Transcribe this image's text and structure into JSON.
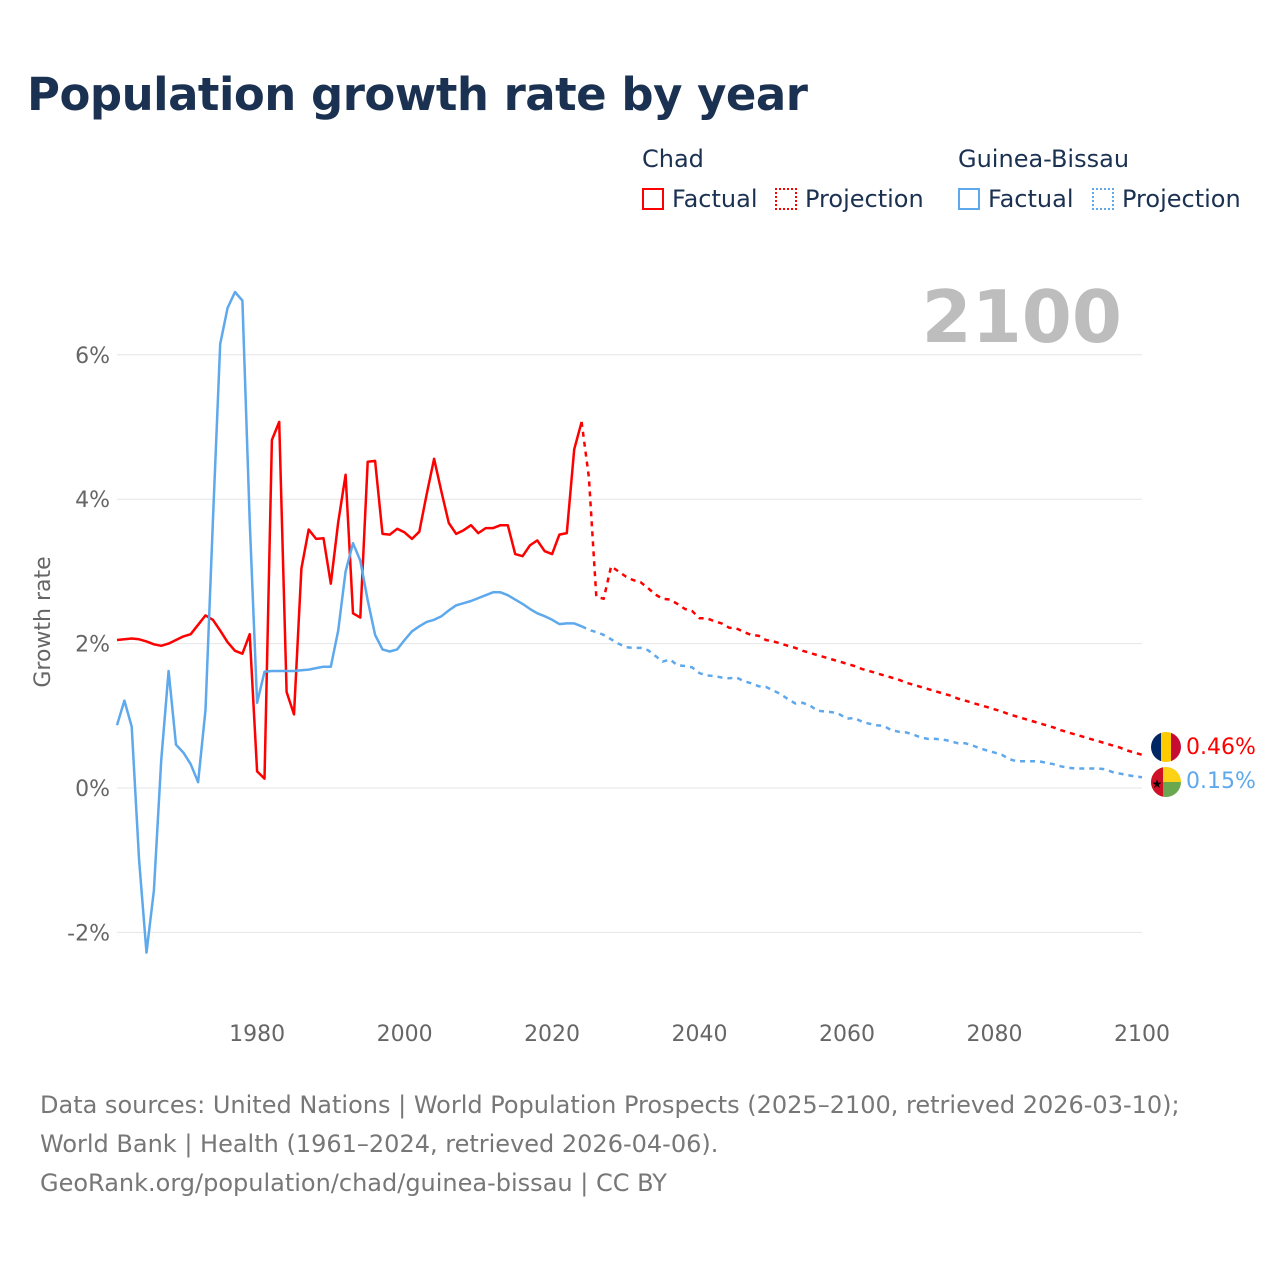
{
  "title": "Population growth rate by year",
  "legend": {
    "groups": [
      {
        "name": "Chad",
        "factual": "Factual",
        "projection": "Projection",
        "color": "#ff0000"
      },
      {
        "name": "Guinea-Bissau",
        "factual": "Factual",
        "projection": "Projection",
        "color": "#5ea8ec"
      }
    ]
  },
  "year_label": "2100",
  "end_labels": {
    "chad": "0.46%",
    "guinea_bissau": "0.15%"
  },
  "footer": {
    "sources": "Data sources: United Nations | World Population Prospects (2025–2100, retrieved 2026-03-10); World Bank | Health (1961–2024, retrieved 2026-04-06).",
    "link": "GeoRank.org/population/chad/guinea-bissau | CC BY"
  },
  "chart_data": {
    "type": "line",
    "title": "Population growth rate by year",
    "ylabel": "Growth rate",
    "xlabel": "",
    "xlim": [
      1961,
      2100
    ],
    "ylim": [
      -3,
      7
    ],
    "xticks": [
      1980,
      2000,
      2020,
      2040,
      2060,
      2080,
      2100
    ],
    "xtick_labels": [
      "1980",
      "2000",
      "2020",
      "2040",
      "2060",
      "2080",
      "2100"
    ],
    "yticks": [
      -2,
      0,
      2,
      4,
      6
    ],
    "ytick_labels": [
      "-2%",
      "0%",
      "2%",
      "4%",
      "6%"
    ],
    "grid": true,
    "series": [
      {
        "name": "Chad Factual",
        "color": "#ff0000",
        "style": "solid",
        "start": 1961,
        "values": [
          2.05,
          2.06,
          2.07,
          2.06,
          2.03,
          1.99,
          1.97,
          2.0,
          2.05,
          2.1,
          2.13,
          2.26,
          2.39,
          2.33,
          2.18,
          2.02,
          1.9,
          1.86,
          2.13,
          0.23,
          0.13,
          4.82,
          5.07,
          1.33,
          1.02,
          3.04,
          3.58,
          3.45,
          3.46,
          2.83,
          3.68,
          4.34,
          2.42,
          2.36,
          4.52,
          4.53,
          3.52,
          3.51,
          3.59,
          3.54,
          3.45,
          3.55,
          4.07,
          4.56,
          4.1,
          3.67,
          3.52,
          3.57,
          3.64,
          3.53,
          3.6,
          3.6,
          3.64,
          3.64,
          3.24,
          3.21,
          3.36,
          3.43,
          3.28,
          3.24,
          3.51,
          3.53,
          4.69,
          5.07
        ]
      },
      {
        "name": "Chad Projection",
        "color": "#ff0000",
        "style": "dotted",
        "start": 2024,
        "values": [
          5.07,
          4.3,
          2.65,
          2.62,
          3.07,
          3.0,
          2.93,
          2.88,
          2.85,
          2.77,
          2.68,
          2.62,
          2.61,
          2.55,
          2.48,
          2.45,
          2.35,
          2.35,
          2.31,
          2.28,
          2.22,
          2.21,
          2.16,
          2.12,
          2.11,
          2.05,
          2.03,
          2.0,
          1.97,
          1.94,
          1.9,
          1.87,
          1.84,
          1.81,
          1.78,
          1.75,
          1.72,
          1.69,
          1.65,
          1.62,
          1.59,
          1.56,
          1.53,
          1.5,
          1.46,
          1.43,
          1.4,
          1.37,
          1.34,
          1.31,
          1.28,
          1.24,
          1.21,
          1.18,
          1.15,
          1.12,
          1.09,
          1.06,
          1.02,
          0.99,
          0.96,
          0.93,
          0.9,
          0.87,
          0.84,
          0.8,
          0.77,
          0.74,
          0.71,
          0.68,
          0.65,
          0.62,
          0.59,
          0.56,
          0.52,
          0.49,
          0.46
        ]
      },
      {
        "name": "Guinea-Bissau Factual",
        "color": "#5ea8ec",
        "style": "solid",
        "start": 1961,
        "values": [
          0.87,
          1.21,
          0.85,
          -1.0,
          -2.28,
          -1.42,
          0.38,
          1.62,
          0.6,
          0.49,
          0.33,
          0.08,
          1.08,
          3.7,
          6.15,
          6.65,
          6.87,
          6.75,
          3.7,
          1.18,
          1.61,
          1.62,
          1.62,
          1.62,
          1.62,
          1.63,
          1.64,
          1.66,
          1.68,
          1.68,
          2.18,
          3.0,
          3.39,
          3.15,
          2.6,
          2.12,
          1.92,
          1.89,
          1.92,
          2.05,
          2.17,
          2.24,
          2.3,
          2.33,
          2.38,
          2.46,
          2.53,
          2.56,
          2.59,
          2.63,
          2.67,
          2.71,
          2.71,
          2.67,
          2.61,
          2.55,
          2.48,
          2.42,
          2.38,
          2.33,
          2.27,
          2.28,
          2.28,
          2.24
        ]
      },
      {
        "name": "Guinea-Bissau Projection",
        "color": "#5ea8ec",
        "style": "dotted",
        "start": 2024,
        "values": [
          2.24,
          2.19,
          2.16,
          2.12,
          2.06,
          2.0,
          1.95,
          1.94,
          1.94,
          1.91,
          1.83,
          1.75,
          1.78,
          1.7,
          1.69,
          1.67,
          1.59,
          1.56,
          1.55,
          1.53,
          1.52,
          1.53,
          1.48,
          1.45,
          1.41,
          1.4,
          1.35,
          1.3,
          1.23,
          1.17,
          1.18,
          1.14,
          1.07,
          1.06,
          1.05,
          1.02,
          0.96,
          0.97,
          0.92,
          0.89,
          0.87,
          0.86,
          0.8,
          0.78,
          0.77,
          0.74,
          0.7,
          0.68,
          0.68,
          0.67,
          0.65,
          0.62,
          0.62,
          0.59,
          0.55,
          0.52,
          0.49,
          0.46,
          0.4,
          0.37,
          0.37,
          0.37,
          0.37,
          0.35,
          0.33,
          0.3,
          0.28,
          0.27,
          0.27,
          0.27,
          0.27,
          0.26,
          0.22,
          0.2,
          0.18,
          0.16,
          0.15
        ]
      }
    ]
  }
}
